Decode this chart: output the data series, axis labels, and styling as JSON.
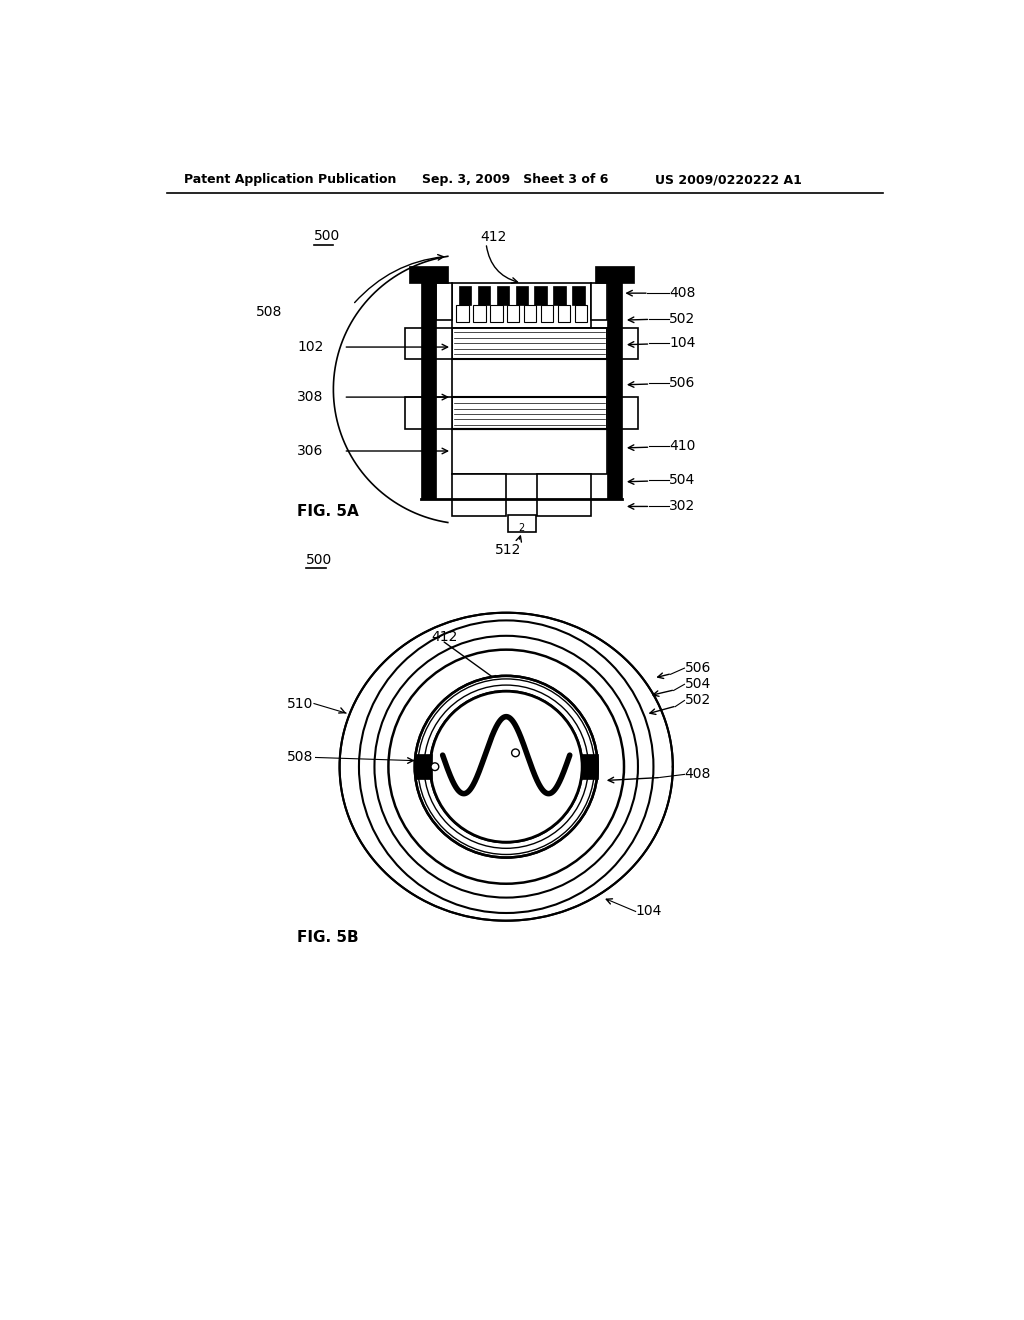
{
  "bg_color": "#ffffff",
  "header_left": "Patent Application Publication",
  "header_mid": "Sep. 3, 2009   Sheet 3 of 6",
  "header_right": "US 2009/0220222 A1",
  "fig5a_label": "FIG. 5A",
  "fig5b_label": "FIG. 5B"
}
